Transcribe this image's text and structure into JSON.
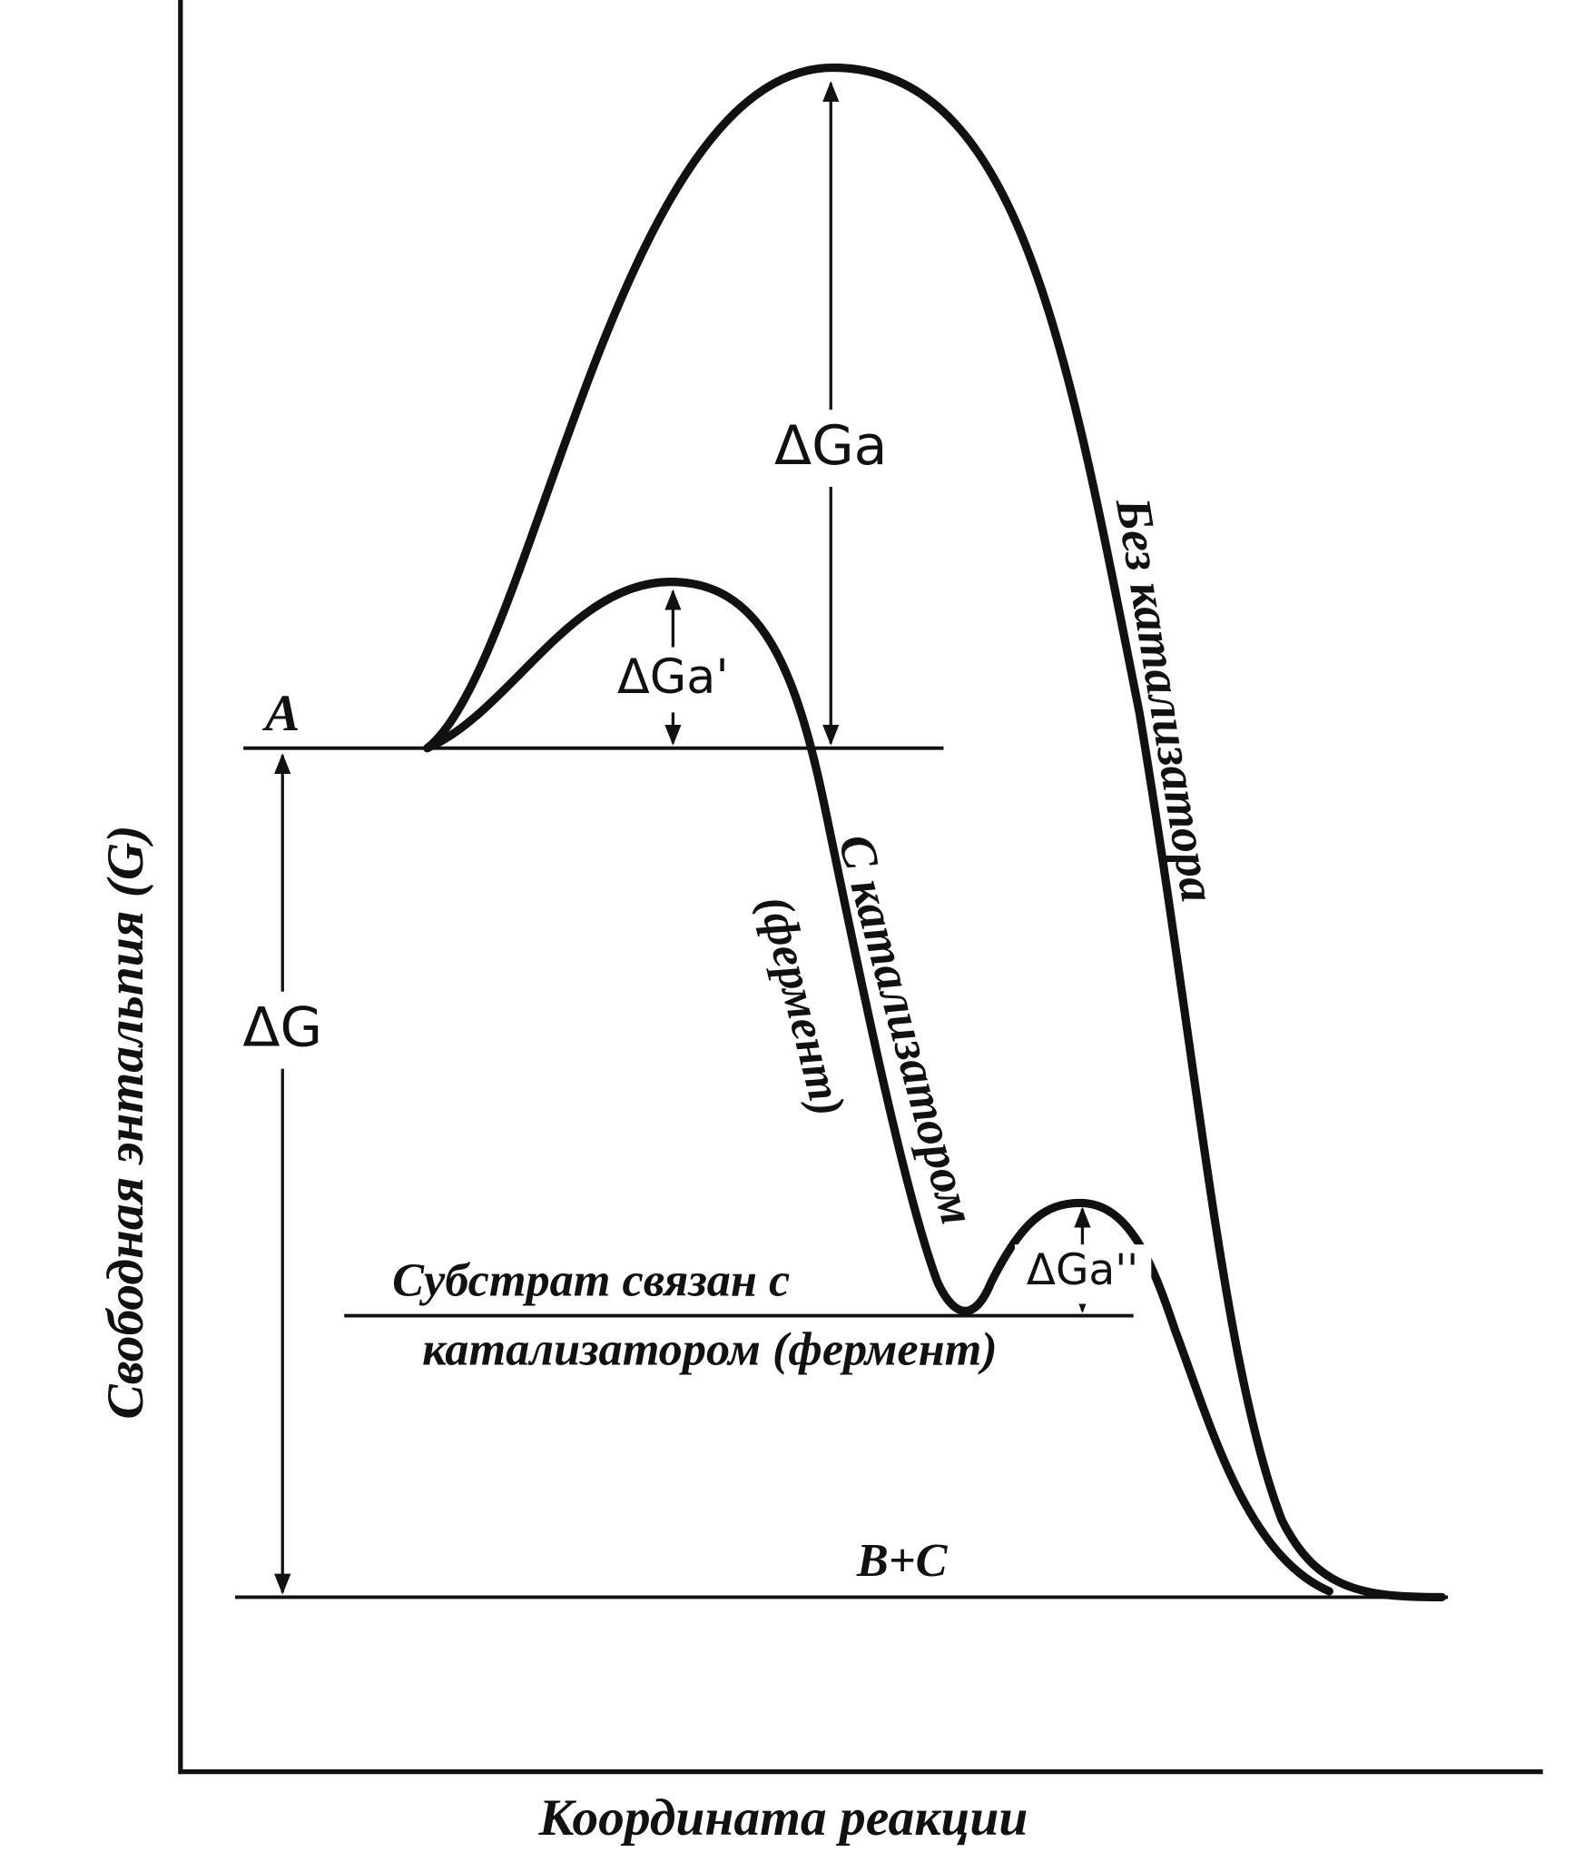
{
  "axis_labels": {
    "y": "Свободная энтальпия (G)",
    "x": "Координата реакции"
  },
  "levels": {
    "reactant": "A",
    "intermediate": [
      "Субстрат связан с",
      "катализатором (фермент)"
    ],
    "product": "B+C"
  },
  "curves": {
    "uncatalyzed": "Без катализатора",
    "catalyzed": [
      "С катализатором",
      "(фермент)"
    ]
  },
  "energies": {
    "activation_uncatalyzed": "ΔGa",
    "activation_catalyzed_1": "ΔGa'",
    "activation_catalyzed_2": "ΔGa''",
    "overall": "ΔG"
  }
}
